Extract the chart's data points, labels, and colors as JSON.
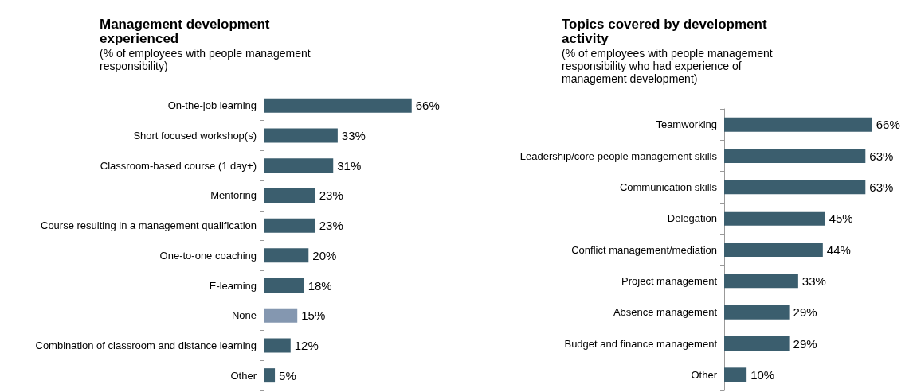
{
  "chart_data": [
    {
      "type": "bar",
      "orientation": "horizontal",
      "title": "Management development experienced",
      "subtitle": "(% of employees with people management responsibility)",
      "categories": [
        "On-the-job learning",
        "Short focused workshop(s)",
        "Classroom-based course (1 day+)",
        "Mentoring",
        "Course resulting in a management qualification",
        "One-to-one coaching",
        "E-learning",
        "None",
        "Combination of classroom and distance learning",
        "Other"
      ],
      "values": [
        66,
        33,
        31,
        23,
        23,
        20,
        18,
        15,
        12,
        5
      ],
      "colors": [
        "#3b5e6e",
        "#3b5e6e",
        "#3b5e6e",
        "#3b5e6e",
        "#3b5e6e",
        "#3b5e6e",
        "#3b5e6e",
        "#8497b0",
        "#3b5e6e",
        "#3b5e6e"
      ],
      "value_labels": [
        "66%",
        "33%",
        "31%",
        "23%",
        "23%",
        "20%",
        "18%",
        "15%",
        "12%",
        "5%"
      ]
    },
    {
      "type": "bar",
      "orientation": "horizontal",
      "title": "Topics covered by development activity",
      "subtitle": "(% of employees with people management responsibility who had experience of management development)",
      "categories": [
        "Teamworking",
        "Leadership/core people management skills",
        "Communication skills",
        "Delegation",
        "Conflict management/mediation",
        "Project management",
        "Absence management",
        "Budget and finance management",
        "Other"
      ],
      "values": [
        66,
        63,
        63,
        45,
        44,
        33,
        29,
        29,
        10
      ],
      "color": "#3b5e6e",
      "value_labels": [
        "66%",
        "63%",
        "63%",
        "45%",
        "44%",
        "33%",
        "29%",
        "29%",
        "10%"
      ]
    }
  ]
}
